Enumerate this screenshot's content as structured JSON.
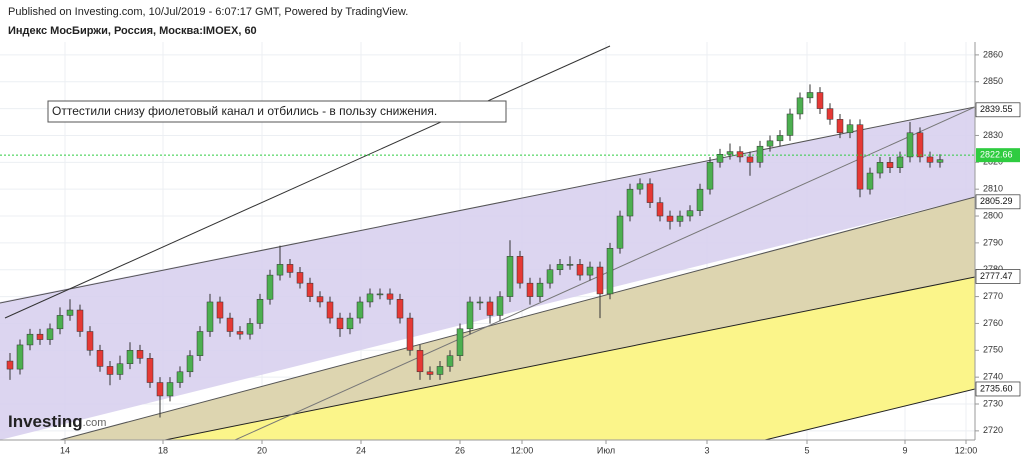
{
  "header": {
    "published": "Published on Investing.com, 10/Jul/2019 - 6:07:17 GMT, Powered by TradingView.",
    "symbol": "Индекс МосБиржи, Россия, Москва:IMOEX, 60"
  },
  "logo": {
    "name": "Investing",
    "suffix": ".com"
  },
  "chart_data": {
    "type": "candlestick",
    "annotation": "Оттестили снизу фиолетовый канал и отбились - в пользу снижения.",
    "up_color": "#4caf50",
    "down_color": "#e53935",
    "grid": true,
    "ylim": [
      2716.6,
      2864.8
    ],
    "yticks": [
      2720,
      2730,
      2740,
      2750,
      2760,
      2770,
      2780,
      2790,
      2800,
      2810,
      2820,
      2830,
      2840,
      2850,
      2860
    ],
    "xlim": [
      -1,
      96.5
    ],
    "xticks": [
      {
        "value": 5.5,
        "label": "14"
      },
      {
        "value": 15.3,
        "label": "18"
      },
      {
        "value": 25.2,
        "label": "20"
      },
      {
        "value": 35.1,
        "label": "24"
      },
      {
        "value": 45,
        "label": "26"
      },
      {
        "value": 51.2,
        "label": "12:00"
      },
      {
        "value": 59.6,
        "label": "Июл"
      },
      {
        "value": 69.7,
        "label": "3"
      },
      {
        "value": 79.7,
        "label": "5"
      },
      {
        "value": 89.5,
        "label": "9"
      },
      {
        "value": 95.6,
        "label": "12:00"
      }
    ],
    "last_price": 2822.66,
    "last_price_color": "#2ecc40",
    "level_labels": [
      2839.55,
      2805.29,
      2777.47,
      {
        "value": 2735.6,
        "label": "2735.60"
      }
    ],
    "candles": [
      [
        2746,
        2749,
        2739,
        2743
      ],
      [
        2743,
        2754,
        2741,
        2752
      ],
      [
        2752,
        2758,
        2750,
        2756
      ],
      [
        2756,
        2758,
        2752,
        2754
      ],
      [
        2754,
        2760,
        2752,
        2758
      ],
      [
        2758,
        2766,
        2756,
        2763
      ],
      [
        2763,
        2769,
        2761,
        2765
      ],
      [
        2765,
        2767,
        2755,
        2757
      ],
      [
        2757,
        2759,
        2748,
        2750
      ],
      [
        2750,
        2752,
        2742,
        2744
      ],
      [
        2744,
        2746,
        2737,
        2741
      ],
      [
        2741,
        2748,
        2739,
        2745
      ],
      [
        2745,
        2753,
        2743,
        2750
      ],
      [
        2750,
        2752,
        2745,
        2747
      ],
      [
        2747,
        2749,
        2736,
        2738
      ],
      [
        2738,
        2740,
        2725,
        2733
      ],
      [
        2733,
        2740,
        2731,
        2738
      ],
      [
        2738,
        2744,
        2736,
        2742
      ],
      [
        2742,
        2750,
        2740,
        2748
      ],
      [
        2748,
        2759,
        2746,
        2757
      ],
      [
        2757,
        2771,
        2755,
        2768
      ],
      [
        2768,
        2770,
        2760,
        2762
      ],
      [
        2762,
        2764,
        2755,
        2757
      ],
      [
        2757,
        2759,
        2754,
        2756
      ],
      [
        2756,
        2762,
        2754,
        2760
      ],
      [
        2760,
        2771,
        2758,
        2769
      ],
      [
        2769,
        2780,
        2767,
        2778
      ],
      [
        2778,
        2789,
        2776,
        2782
      ],
      [
        2782,
        2784,
        2777,
        2779
      ],
      [
        2779,
        2781,
        2773,
        2775
      ],
      [
        2775,
        2777,
        2768,
        2770
      ],
      [
        2770,
        2772,
        2766,
        2768
      ],
      [
        2768,
        2770,
        2760,
        2762
      ],
      [
        2762,
        2764,
        2755,
        2758
      ],
      [
        2758,
        2764,
        2756,
        2762
      ],
      [
        2762,
        2770,
        2760,
        2768
      ],
      [
        2768,
        2773,
        2766,
        2771
      ],
      [
        2771,
        2773,
        2769,
        2771
      ],
      [
        2771,
        2773,
        2767,
        2769
      ],
      [
        2769,
        2771,
        2760,
        2762
      ],
      [
        2762,
        2764,
        2748,
        2750
      ],
      [
        2750,
        2752,
        2739,
        2742
      ],
      [
        2742,
        2744,
        2739,
        2741
      ],
      [
        2741,
        2746,
        2739,
        2744
      ],
      [
        2744,
        2750,
        2742,
        2748
      ],
      [
        2748,
        2760,
        2746,
        2758
      ],
      [
        2758,
        2770,
        2756,
        2768
      ],
      [
        2768,
        2770,
        2765,
        2768
      ],
      [
        2768,
        2770,
        2760,
        2763
      ],
      [
        2763,
        2772,
        2761,
        2770
      ],
      [
        2770,
        2791,
        2768,
        2785
      ],
      [
        2785,
        2787,
        2773,
        2775
      ],
      [
        2775,
        2777,
        2767,
        2770
      ],
      [
        2770,
        2777,
        2768,
        2775
      ],
      [
        2775,
        2782,
        2773,
        2780
      ],
      [
        2780,
        2784,
        2778,
        2782
      ],
      [
        2782,
        2785,
        2780,
        2782
      ],
      [
        2782,
        2784,
        2776,
        2778
      ],
      [
        2778,
        2783,
        2776,
        2781
      ],
      [
        2781,
        2783,
        2762,
        2771
      ],
      [
        2771,
        2790,
        2769,
        2788
      ],
      [
        2788,
        2802,
        2786,
        2800
      ],
      [
        2800,
        2812,
        2798,
        2810
      ],
      [
        2810,
        2814,
        2808,
        2812
      ],
      [
        2812,
        2814,
        2803,
        2805
      ],
      [
        2805,
        2807,
        2798,
        2800
      ],
      [
        2800,
        2802,
        2795,
        2798
      ],
      [
        2798,
        2802,
        2796,
        2800
      ],
      [
        2800,
        2804,
        2798,
        2802
      ],
      [
        2802,
        2812,
        2800,
        2810
      ],
      [
        2810,
        2822,
        2808,
        2820
      ],
      [
        2820,
        2825,
        2818,
        2823
      ],
      [
        2823,
        2827,
        2821,
        2824
      ],
      [
        2824,
        2826,
        2820,
        2822
      ],
      [
        2822,
        2824,
        2815,
        2820
      ],
      [
        2820,
        2828,
        2818,
        2826
      ],
      [
        2826,
        2830,
        2824,
        2828
      ],
      [
        2828,
        2832,
        2826,
        2830
      ],
      [
        2830,
        2840,
        2828,
        2838
      ],
      [
        2838,
        2846,
        2836,
        2844
      ],
      [
        2844,
        2849,
        2842,
        2846
      ],
      [
        2846,
        2848,
        2838,
        2840
      ],
      [
        2840,
        2842,
        2834,
        2836
      ],
      [
        2836,
        2838,
        2829,
        2831
      ],
      [
        2831,
        2836,
        2829,
        2834
      ],
      [
        2834,
        2836,
        2807,
        2810
      ],
      [
        2810,
        2818,
        2808,
        2816
      ],
      [
        2816,
        2822,
        2814,
        2820
      ],
      [
        2820,
        2822,
        2816,
        2818
      ],
      [
        2818,
        2824,
        2816,
        2822
      ],
      [
        2822,
        2835,
        2820,
        2831
      ],
      [
        2831,
        2833,
        2820,
        2822
      ],
      [
        2822,
        2824,
        2818,
        2820
      ],
      [
        2820,
        2823,
        2818,
        2821
      ]
    ]
  }
}
